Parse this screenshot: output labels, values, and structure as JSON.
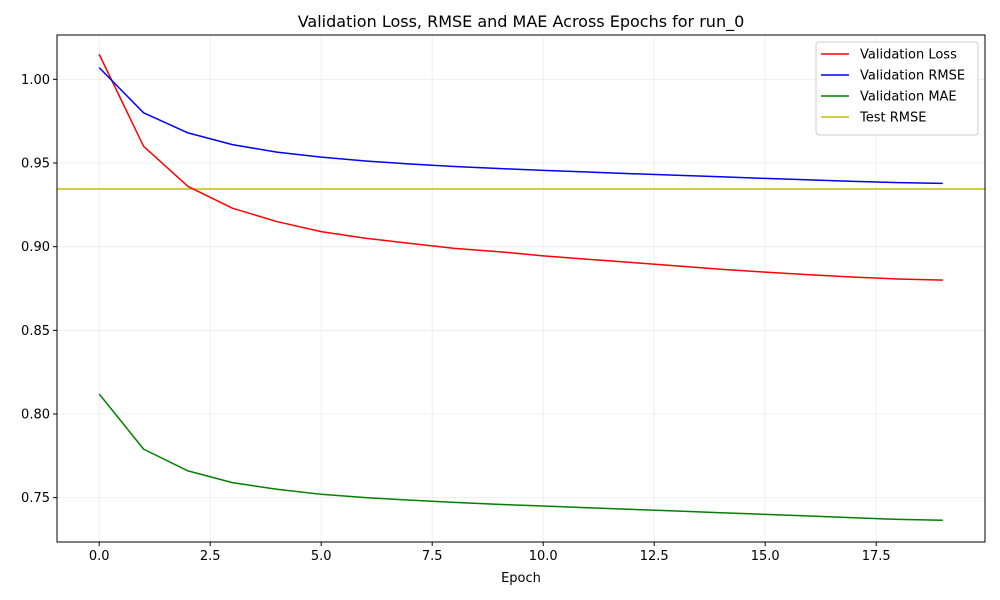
{
  "chart_data": {
    "type": "line",
    "title": "Validation Loss, RMSE and MAE Across Epochs for run_0",
    "xlabel": "Epoch",
    "ylabel": "",
    "xlim": [
      -0.95,
      19.95
    ],
    "ylim": [
      0.7235,
      1.0265
    ],
    "xticks": [
      0.0,
      2.5,
      5.0,
      7.5,
      10.0,
      12.5,
      15.0,
      17.5
    ],
    "xtick_labels": [
      "0.0",
      "2.5",
      "5.0",
      "7.5",
      "10.0",
      "12.5",
      "15.0",
      "17.5"
    ],
    "yticks": [
      0.75,
      0.8,
      0.85,
      0.9,
      0.95,
      1.0
    ],
    "ytick_labels": [
      "0.75",
      "0.80",
      "0.85",
      "0.90",
      "0.95",
      "1.00"
    ],
    "grid": true,
    "legend_position": "top-right",
    "x": [
      0,
      1,
      2,
      3,
      4,
      5,
      6,
      7,
      8,
      9,
      10,
      11,
      12,
      13,
      14,
      15,
      16,
      17,
      18,
      19
    ],
    "series": [
      {
        "name": "Validation Loss",
        "color": "#ff0000",
        "values": [
          1.015,
          0.96,
          0.936,
          0.923,
          0.915,
          0.909,
          0.905,
          0.902,
          0.899,
          0.897,
          0.8945,
          0.8925,
          0.8905,
          0.8885,
          0.8865,
          0.8848,
          0.8832,
          0.8818,
          0.8807,
          0.88
        ]
      },
      {
        "name": "Validation RMSE",
        "color": "#0000ff",
        "values": [
          1.007,
          0.98,
          0.968,
          0.961,
          0.9565,
          0.9535,
          0.9512,
          0.9494,
          0.9479,
          0.9467,
          0.9456,
          0.9446,
          0.9436,
          0.9427,
          0.9418,
          0.9408,
          0.9399,
          0.939,
          0.9383,
          0.9378
        ]
      },
      {
        "name": "Validation MAE",
        "color": "#008000",
        "values": [
          0.812,
          0.779,
          0.766,
          0.759,
          0.755,
          0.752,
          0.75,
          0.7485,
          0.7472,
          0.746,
          0.745,
          0.744,
          0.743,
          0.742,
          0.741,
          0.74,
          0.739,
          0.738,
          0.737,
          0.7365
        ]
      }
    ],
    "hlines": [
      {
        "name": "Test RMSE",
        "color": "#bfbf00",
        "value": 0.9345
      }
    ]
  }
}
